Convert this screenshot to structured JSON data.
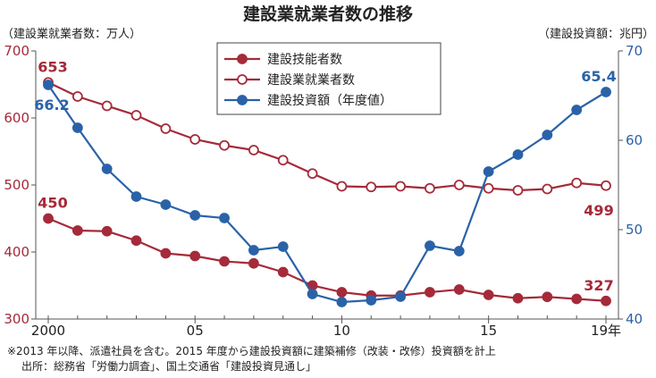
{
  "title": "建設業就業者数の推移",
  "left_unit": "（建設業就業者数：万人）",
  "right_unit": "（建設投資額：兆円）",
  "notes": [
    "※2013 年以降、派遣社員を含む。2015 年度から建設投資額に建築補修（改装・改修）投資額を計上",
    "出所：総務省「労働力調査」、国土交通省「建設投資見通し」"
  ],
  "colors": {
    "workers": "#a52a3a",
    "investment": "#2a62a8",
    "axis": "#555555"
  },
  "chart_data": {
    "type": "line",
    "x": [
      2000,
      2001,
      2002,
      2003,
      2004,
      2005,
      2006,
      2007,
      2008,
      2009,
      2010,
      2011,
      2012,
      2013,
      2014,
      2015,
      2016,
      2017,
      2018,
      2019
    ],
    "x_ticks": [
      {
        "value": 2000,
        "label": "2000"
      },
      {
        "value": 2005,
        "label": "05"
      },
      {
        "value": 2010,
        "label": "10"
      },
      {
        "value": 2015,
        "label": "15"
      },
      {
        "value": 2019,
        "label": "19年"
      }
    ],
    "ylim_left": [
      300,
      700
    ],
    "yticks_left": [
      300,
      400,
      500,
      600,
      700
    ],
    "ylim_right": [
      40,
      70
    ],
    "yticks_right": [
      40,
      50,
      60,
      70
    ],
    "grid": false,
    "legend_position": "top-center",
    "series": [
      {
        "name": "建設技能者数",
        "axis": "left",
        "marker": "filled",
        "values": [
          450,
          432,
          431,
          417,
          398,
          394,
          386,
          383,
          370,
          350,
          340,
          335,
          335,
          340,
          344,
          336,
          331,
          333,
          330,
          327
        ]
      },
      {
        "name": "建設業就業者数",
        "axis": "left",
        "marker": "open",
        "values": [
          653,
          632,
          618,
          604,
          584,
          568,
          559,
          552,
          537,
          517,
          498,
          497,
          498,
          495,
          500,
          495,
          492,
          494,
          503,
          499
        ]
      },
      {
        "name": "建設投資額（年度値）",
        "axis": "right",
        "marker": "filled",
        "values": [
          66.2,
          61.4,
          56.8,
          53.7,
          52.8,
          51.6,
          51.3,
          47.7,
          48.1,
          42.8,
          41.9,
          42.1,
          42.5,
          48.2,
          47.6,
          56.5,
          58.4,
          60.6,
          63.4,
          65.4
        ]
      }
    ],
    "data_labels": [
      {
        "series": 1,
        "index": 0,
        "text": "653"
      },
      {
        "series": 0,
        "index": 0,
        "text": "450"
      },
      {
        "series": 2,
        "index": 0,
        "text": "66.2"
      },
      {
        "series": 2,
        "index": 19,
        "text": "65.4"
      },
      {
        "series": 1,
        "index": 19,
        "text": "499"
      },
      {
        "series": 0,
        "index": 19,
        "text": "327"
      }
    ]
  }
}
